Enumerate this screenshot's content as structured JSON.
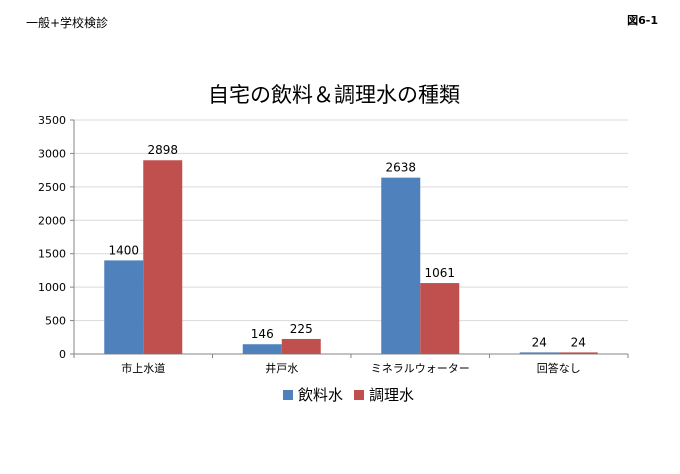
{
  "header": {
    "left_label": "一般+学校検診",
    "right_label": "図6-1"
  },
  "colors": {
    "series_1": "#4F81BD",
    "series_2": "#C0504D",
    "gridline": "#D9D9D9",
    "axis": "#868686"
  },
  "chart_data": {
    "type": "bar",
    "title": "自宅の飲料＆調理水の種類",
    "xlabel": "",
    "ylabel": "",
    "categories": [
      "市上水道",
      "井戸水",
      "ミネラルウォーター",
      "回答なし"
    ],
    "series": [
      {
        "name": "飲料水",
        "values": [
          1400,
          146,
          2638,
          24
        ]
      },
      {
        "name": "調理水",
        "values": [
          2898,
          225,
          1061,
          24
        ]
      }
    ],
    "ylim": [
      0,
      3500
    ],
    "yticks": [
      0,
      500,
      1000,
      1500,
      2000,
      2500,
      3000,
      3500
    ],
    "grid": true,
    "legend": "bottom",
    "data_labels": true
  }
}
